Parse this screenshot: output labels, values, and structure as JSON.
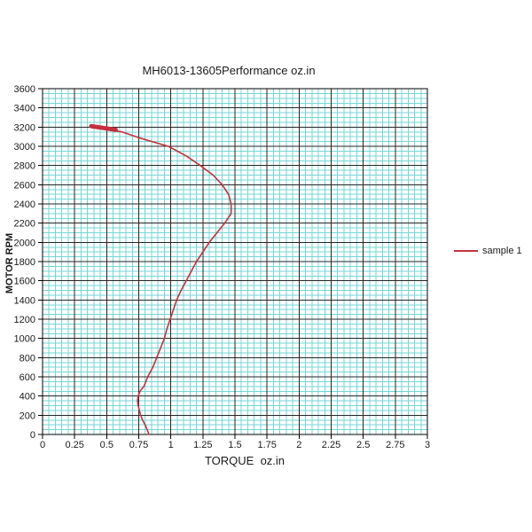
{
  "chart_data": {
    "type": "line",
    "title": "MH6013-13605Performance oz.in",
    "xlabel": "TORQUE  oz.in",
    "ylabel": "MOTOR RPM",
    "xlim": [
      0,
      3
    ],
    "ylim": [
      0,
      3600
    ],
    "x_tick_step": 0.25,
    "y_tick_step": 200,
    "x_minor_step": 0.05,
    "y_minor_step": 50,
    "x_tick_labels": [
      "0",
      "0.25",
      "0.5",
      "0.75",
      "1",
      "1.25",
      "1.5",
      "1.75",
      "2",
      "2.25",
      "2.5",
      "2.75",
      "3"
    ],
    "y_tick_labels": [
      "0",
      "200",
      "400",
      "600",
      "800",
      "1000",
      "1200",
      "1400",
      "1600",
      "1800",
      "2000",
      "2200",
      "2400",
      "2600",
      "2800",
      "3000",
      "3200",
      "3400",
      "3600"
    ],
    "grid": "major+minor",
    "legend_position": "right-middle",
    "series": [
      {
        "name": "sample 1",
        "color": "#c5303c",
        "points": [
          [
            0.4,
            3200
          ],
          [
            0.62,
            3150
          ],
          [
            0.75,
            3090
          ],
          [
            0.98,
            3000
          ],
          [
            1.12,
            2900
          ],
          [
            1.23,
            2800
          ],
          [
            1.33,
            2700
          ],
          [
            1.4,
            2600
          ],
          [
            1.45,
            2500
          ],
          [
            1.47,
            2400
          ],
          [
            1.47,
            2300
          ],
          [
            1.42,
            2200
          ],
          [
            1.36,
            2100
          ],
          [
            1.3,
            2000
          ],
          [
            1.25,
            1900
          ],
          [
            1.2,
            1800
          ],
          [
            1.16,
            1700
          ],
          [
            1.12,
            1600
          ],
          [
            1.08,
            1500
          ],
          [
            1.045,
            1400
          ],
          [
            1.02,
            1300
          ],
          [
            0.995,
            1200
          ],
          [
            0.97,
            1100
          ],
          [
            0.95,
            1000
          ],
          [
            0.92,
            900
          ],
          [
            0.89,
            800
          ],
          [
            0.86,
            700
          ],
          [
            0.82,
            600
          ],
          [
            0.79,
            500
          ],
          [
            0.76,
            450
          ],
          [
            0.745,
            400
          ],
          [
            0.74,
            350
          ],
          [
            0.745,
            300
          ],
          [
            0.755,
            250
          ],
          [
            0.765,
            200
          ],
          [
            0.78,
            150
          ],
          [
            0.8,
            100
          ],
          [
            0.815,
            50
          ],
          [
            0.83,
            0
          ]
        ]
      }
    ],
    "start_marker": {
      "from": [
        0.38,
        3210
      ],
      "to": [
        0.57,
        3172
      ],
      "width": 5
    },
    "colors": {
      "minor_grid": "#74d6d6",
      "major_grid": "#262626",
      "axis": "#000000",
      "background": "#ffffff",
      "text": "#1a1a1a"
    }
  }
}
